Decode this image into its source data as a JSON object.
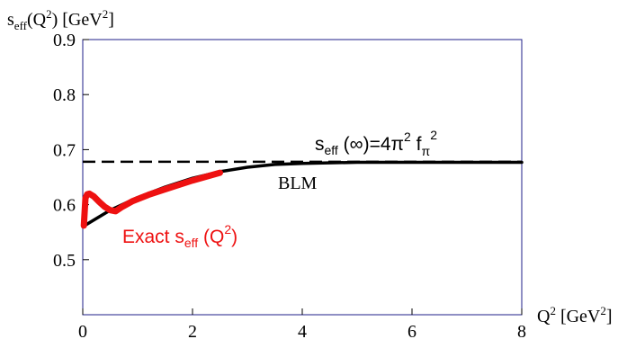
{
  "chart_data": {
    "type": "line",
    "ylabel": {
      "base": "s",
      "sub": "eff",
      "paren": "(Q",
      "sup": "2",
      "close": ") [GeV",
      "sup2": "2",
      "end": "]"
    },
    "xlabel": {
      "base": "Q",
      "sup": "2",
      "unit": " [GeV",
      "sup2": "2",
      "end": "]"
    },
    "xlim": [
      0,
      8
    ],
    "ylim": [
      0.4,
      0.9
    ],
    "xticks": [
      0,
      2,
      4,
      6,
      8
    ],
    "yticks": [
      0.5,
      0.6,
      0.7,
      0.8,
      0.9
    ],
    "grid": false,
    "colors": {
      "axis": "#000000",
      "frame": "#1f1f8a",
      "blm": "#000000",
      "exact": "#ee1111",
      "asymptote": "#000000"
    },
    "series": [
      {
        "name": "BLM",
        "style": "solid",
        "x": [
          0.0,
          0.2,
          0.5,
          1.0,
          1.5,
          2.0,
          2.5,
          3.0,
          3.5,
          4.0,
          5.0,
          6.0,
          7.0,
          8.0
        ],
        "y": [
          0.56,
          0.572,
          0.59,
          0.613,
          0.632,
          0.648,
          0.66,
          0.668,
          0.673,
          0.675,
          0.677,
          0.677,
          0.677,
          0.677
        ]
      },
      {
        "name": "Exact",
        "style": "thick",
        "x": [
          0.02,
          0.05,
          0.08,
          0.12,
          0.2,
          0.3,
          0.4,
          0.5,
          0.6,
          0.7,
          0.9,
          1.2,
          1.5,
          2.0,
          2.5
        ],
        "y": [
          0.562,
          0.612,
          0.619,
          0.62,
          0.615,
          0.605,
          0.596,
          0.59,
          0.588,
          0.595,
          0.606,
          0.618,
          0.628,
          0.644,
          0.658
        ]
      },
      {
        "name": "asymptote",
        "style": "dashed",
        "x": [
          0,
          8
        ],
        "y": [
          0.678,
          0.678
        ]
      }
    ],
    "annotations": {
      "asymptote": {
        "s": "s",
        "sub": "eff",
        "mid": " (∞)=4π",
        "sup": "2",
        "f": " f",
        "fsub": "π",
        "fsup": "2"
      },
      "blm": "BLM",
      "exact": {
        "pre": "Exact  s",
        "sub": "eff",
        "mid": " (Q",
        "sup": "2",
        "end": ")"
      }
    }
  }
}
